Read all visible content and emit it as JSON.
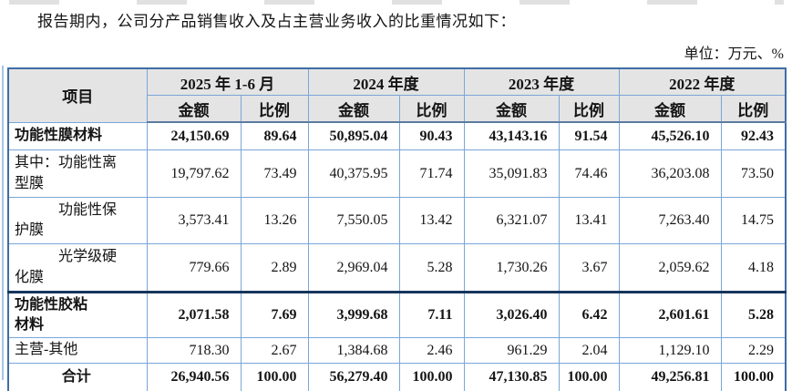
{
  "intro": "报告期内，公司分产品销售收入及占主营业务收入的比重情况如下：",
  "unit_note": "单位：万元、%",
  "table": {
    "item_header": "项目",
    "amount_label": "金额",
    "ratio_label": "比例",
    "periods": [
      "2025 年 1-6 月",
      "2024 年度",
      "2023 年度",
      "2022 年度"
    ],
    "rows": [
      {
        "label": "功能性膜材料",
        "values": [
          "24,150.69",
          "89.64",
          "50,895.04",
          "90.43",
          "43,143.16",
          "91.54",
          "45,526.10",
          "92.43"
        ]
      },
      {
        "label": "其中：功能性离\n型膜",
        "values": [
          "19,797.62",
          "73.49",
          "40,375.95",
          "71.74",
          "35,091.83",
          "74.46",
          "36,203.08",
          "73.50"
        ]
      },
      {
        "label": "　　　功能性保\n护膜",
        "values": [
          "3,573.41",
          "13.26",
          "7,550.05",
          "13.42",
          "6,321.07",
          "13.41",
          "7,263.40",
          "14.75"
        ]
      },
      {
        "label": "　　　光学级硬\n化膜",
        "values": [
          "779.66",
          "2.89",
          "2,969.04",
          "5.28",
          "1,730.26",
          "3.67",
          "2,059.62",
          "4.18"
        ]
      },
      {
        "label": "功能性胶粘\n材料",
        "values": [
          "2,071.58",
          "7.69",
          "3,999.68",
          "7.11",
          "3,026.40",
          "6.42",
          "2,601.61",
          "5.28"
        ]
      },
      {
        "label": "主营-其他",
        "values": [
          "718.30",
          "2.67",
          "1,384.68",
          "2.46",
          "961.29",
          "2.04",
          "1,129.10",
          "2.29"
        ]
      },
      {
        "label": "合计",
        "values": [
          "26,940.56",
          "100.00",
          "56,279.40",
          "100.00",
          "47,130.85",
          "100.00",
          "49,256.81",
          "100.00"
        ]
      }
    ]
  }
}
